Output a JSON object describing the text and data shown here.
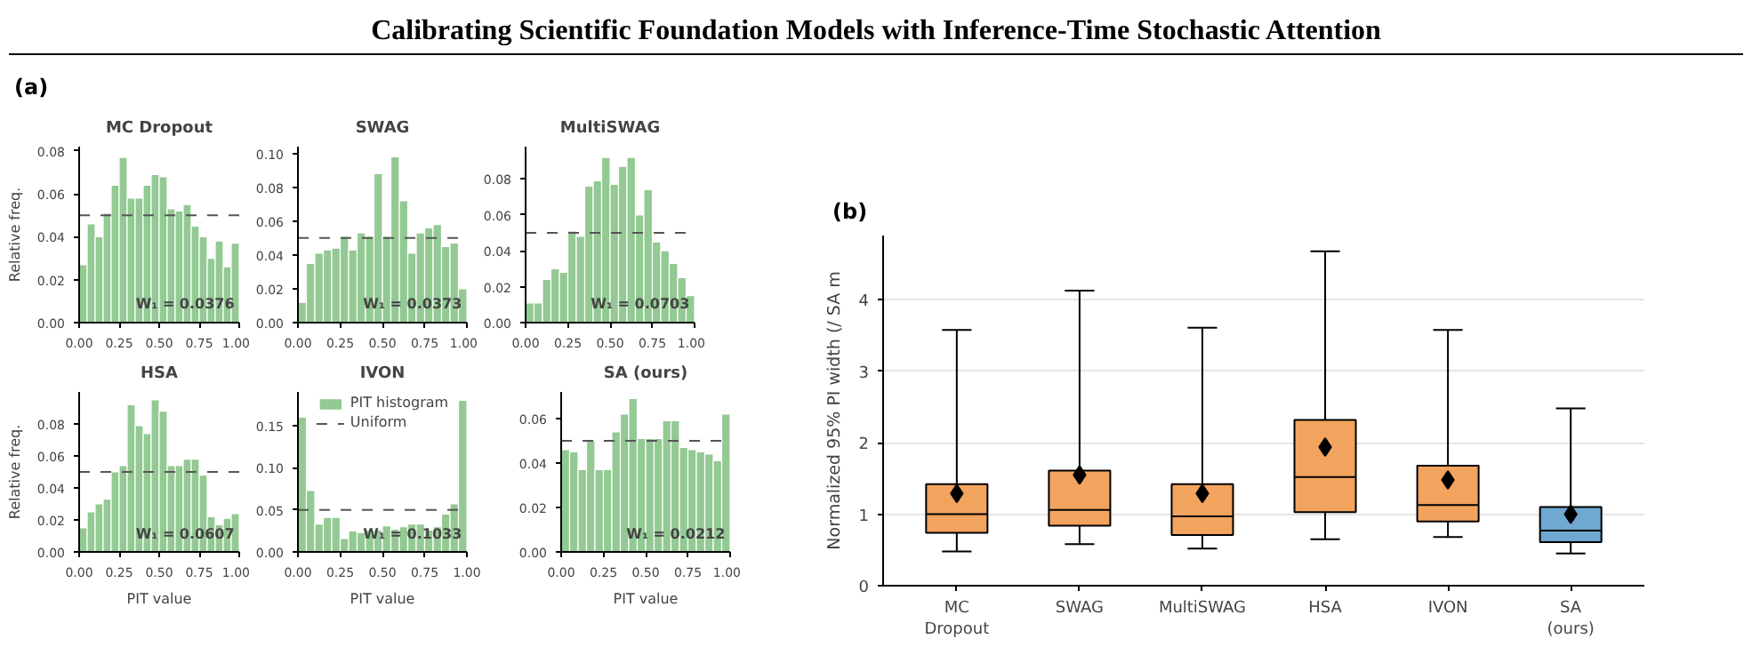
{
  "chart_data": [
    {
      "type": "other",
      "title": "Calibrating Scientific Foundation Models with Inference-Time Stochastic Attention"
    },
    {
      "type": "histogram",
      "title": "MC Dropout",
      "ylabel": "Relative freq.",
      "annotations": [
        "(a)",
        "W₁ = 0.0376"
      ],
      "color": "#93c993",
      "bins": [
        0,
        0.05,
        0.1,
        0.15,
        0.2,
        0.25,
        0.3,
        0.35,
        0.4,
        0.45,
        0.5,
        0.55,
        0.6,
        0.65,
        0.7,
        0.75,
        0.8,
        0.85,
        0.9,
        0.95,
        1.0
      ],
      "values": [
        0.027,
        0.046,
        0.04,
        0.051,
        0.064,
        0.077,
        0.058,
        0.058,
        0.064,
        0.069,
        0.068,
        0.053,
        0.052,
        0.055,
        0.045,
        0.04,
        0.03,
        0.038,
        0.026,
        0.037
      ],
      "xlim": [
        0,
        1
      ],
      "xticks": [
        {
          "value": 0,
          "label": "0.00"
        },
        {
          "value": 0.25,
          "label": "0.25"
        },
        {
          "value": 0.5,
          "label": "0.50"
        },
        {
          "value": 0.75,
          "label": "0.75"
        },
        {
          "value": 1,
          "label": "1.00"
        }
      ],
      "ylim": [
        0,
        0.082
      ],
      "yticks": [
        {
          "value": 0,
          "label": "0.00"
        },
        {
          "value": 0.02,
          "label": "0.02"
        },
        {
          "value": 0.04,
          "label": "0.04"
        },
        {
          "value": 0.06,
          "label": "0.06"
        },
        {
          "value": 0.08,
          "label": "0.08"
        }
      ],
      "ref_lines": [
        {
          "axis": "y",
          "value": 0.05,
          "color": "#555555",
          "line_style": "dashed"
        }
      ]
    },
    {
      "type": "histogram",
      "title": "SWAG",
      "annotations": [
        "W₁ = 0.0373"
      ],
      "color": "#93c993",
      "bins": [
        0,
        0.05,
        0.1,
        0.15,
        0.2,
        0.25,
        0.3,
        0.35,
        0.4,
        0.45,
        0.5,
        0.55,
        0.6,
        0.65,
        0.7,
        0.75,
        0.8,
        0.85,
        0.9,
        0.95,
        1.0
      ],
      "values": [
        0.012,
        0.035,
        0.041,
        0.043,
        0.044,
        0.051,
        0.043,
        0.053,
        0.051,
        0.088,
        0.051,
        0.098,
        0.072,
        0.041,
        0.053,
        0.056,
        0.058,
        0.045,
        0.047,
        0.02
      ],
      "xlim": [
        0,
        1
      ],
      "xticks": [
        {
          "value": 0,
          "label": "0.00"
        },
        {
          "value": 0.25,
          "label": "0.25"
        },
        {
          "value": 0.5,
          "label": "0.50"
        },
        {
          "value": 0.75,
          "label": "0.75"
        },
        {
          "value": 1,
          "label": "1.00"
        }
      ],
      "ylim": [
        0,
        0.104
      ],
      "yticks": [
        {
          "value": 0,
          "label": "0.00"
        },
        {
          "value": 0.02,
          "label": "0.02"
        },
        {
          "value": 0.04,
          "label": "0.04"
        },
        {
          "value": 0.06,
          "label": "0.06"
        },
        {
          "value": 0.08,
          "label": "0.08"
        },
        {
          "value": 0.1,
          "label": "0.10"
        }
      ],
      "ref_lines": [
        {
          "axis": "y",
          "value": 0.05,
          "color": "#555555",
          "line_style": "dashed"
        }
      ]
    },
    {
      "type": "histogram",
      "title": "MultiSWAG",
      "annotations": [
        "W₁ = 0.0703"
      ],
      "color": "#93c993",
      "bins": [
        0,
        0.05,
        0.1,
        0.15,
        0.2,
        0.25,
        0.3,
        0.35,
        0.4,
        0.45,
        0.5,
        0.55,
        0.6,
        0.65,
        0.7,
        0.75,
        0.8,
        0.85,
        0.9,
        0.95,
        1.0
      ],
      "values": [
        0.011,
        0.011,
        0.024,
        0.03,
        0.028,
        0.051,
        0.048,
        0.076,
        0.079,
        0.092,
        0.077,
        0.087,
        0.092,
        0.06,
        0.074,
        0.045,
        0.04,
        0.033,
        0.025,
        0.015
      ],
      "xlim": [
        0,
        1
      ],
      "xticks": [
        {
          "value": 0,
          "label": "0.00"
        },
        {
          "value": 0.25,
          "label": "0.25"
        },
        {
          "value": 0.5,
          "label": "0.50"
        },
        {
          "value": 0.75,
          "label": "0.75"
        },
        {
          "value": 1,
          "label": "1.00"
        }
      ],
      "ylim": [
        0,
        0.098
      ],
      "yticks": [
        {
          "value": 0,
          "label": "0.00"
        },
        {
          "value": 0.02,
          "label": "0.02"
        },
        {
          "value": 0.04,
          "label": "0.04"
        },
        {
          "value": 0.06,
          "label": "0.06"
        },
        {
          "value": 0.08,
          "label": "0.08"
        }
      ],
      "ref_lines": [
        {
          "axis": "y",
          "value": 0.05,
          "color": "#555555",
          "line_style": "dashed"
        }
      ]
    },
    {
      "type": "histogram",
      "title": "HSA",
      "xlabel": "PIT value",
      "ylabel": "Relative freq.",
      "annotations": [
        "W₁ = 0.0607"
      ],
      "color": "#93c993",
      "bins": [
        0,
        0.05,
        0.1,
        0.15,
        0.2,
        0.25,
        0.3,
        0.35,
        0.4,
        0.45,
        0.5,
        0.55,
        0.6,
        0.65,
        0.7,
        0.75,
        0.8,
        0.85,
        0.9,
        0.95,
        1.0
      ],
      "values": [
        0.015,
        0.025,
        0.03,
        0.033,
        0.05,
        0.054,
        0.092,
        0.079,
        0.074,
        0.095,
        0.088,
        0.054,
        0.054,
        0.058,
        0.058,
        0.048,
        0.022,
        0.017,
        0.021,
        0.024
      ],
      "xlim": [
        0,
        1
      ],
      "xticks": [
        {
          "value": 0,
          "label": "0.00"
        },
        {
          "value": 0.25,
          "label": "0.25"
        },
        {
          "value": 0.5,
          "label": "0.50"
        },
        {
          "value": 0.75,
          "label": "0.75"
        },
        {
          "value": 1,
          "label": "1.00"
        }
      ],
      "ylim": [
        0,
        0.1
      ],
      "yticks": [
        {
          "value": 0,
          "label": "0.00"
        },
        {
          "value": 0.02,
          "label": "0.02"
        },
        {
          "value": 0.04,
          "label": "0.04"
        },
        {
          "value": 0.06,
          "label": "0.06"
        },
        {
          "value": 0.08,
          "label": "0.08"
        }
      ],
      "ref_lines": [
        {
          "axis": "y",
          "value": 0.05,
          "color": "#555555",
          "line_style": "dashed"
        }
      ]
    },
    {
      "type": "histogram",
      "title": "IVON",
      "xlabel": "PIT value",
      "annotations": [
        "W₁ = 0.1033"
      ],
      "legend": "top",
      "bins": [
        0,
        0.05,
        0.1,
        0.15,
        0.2,
        0.25,
        0.3,
        0.35,
        0.4,
        0.45,
        0.5,
        0.55,
        0.6,
        0.65,
        0.7,
        0.75,
        0.8,
        0.85,
        0.9,
        0.95,
        1.0
      ],
      "series": [
        {
          "name": "PIT histogram",
          "color": "#93c993",
          "values": [
            0.16,
            0.073,
            0.033,
            0.041,
            0.041,
            0.016,
            0.025,
            0.023,
            0.026,
            0.026,
            0.031,
            0.027,
            0.03,
            0.033,
            0.033,
            0.026,
            0.03,
            0.045,
            0.057,
            0.18
          ]
        }
      ],
      "xlim": [
        0,
        1
      ],
      "xticks": [
        {
          "value": 0,
          "label": "0.00"
        },
        {
          "value": 0.25,
          "label": "0.25"
        },
        {
          "value": 0.5,
          "label": "0.50"
        },
        {
          "value": 0.75,
          "label": "0.75"
        },
        {
          "value": 1,
          "label": "1.00"
        }
      ],
      "ylim": [
        0,
        0.19
      ],
      "yticks": [
        {
          "value": 0,
          "label": "0.00"
        },
        {
          "value": 0.05,
          "label": "0.05"
        },
        {
          "value": 0.1,
          "label": "0.10"
        },
        {
          "value": 0.15,
          "label": "0.15"
        }
      ],
      "ref_lines": [
        {
          "axis": "y",
          "value": 0.05,
          "color": "#555555",
          "line_style": "dashed",
          "label": "Uniform"
        }
      ]
    },
    {
      "type": "histogram",
      "title": "SA (ours)",
      "xlabel": "PIT value",
      "annotations": [
        "W₁ = 0.0212"
      ],
      "color": "#93c993",
      "bins": [
        0,
        0.05,
        0.1,
        0.15,
        0.2,
        0.25,
        0.3,
        0.35,
        0.4,
        0.45,
        0.5,
        0.55,
        0.6,
        0.65,
        0.7,
        0.75,
        0.8,
        0.85,
        0.9,
        0.95,
        1.0
      ],
      "values": [
        0.046,
        0.045,
        0.037,
        0.05,
        0.037,
        0.037,
        0.054,
        0.062,
        0.069,
        0.051,
        0.051,
        0.051,
        0.059,
        0.059,
        0.047,
        0.046,
        0.045,
        0.044,
        0.041,
        0.062
      ],
      "xlim": [
        0,
        1
      ],
      "xticks": [
        {
          "value": 0,
          "label": "0.00"
        },
        {
          "value": 0.25,
          "label": "0.25"
        },
        {
          "value": 0.5,
          "label": "0.50"
        },
        {
          "value": 0.75,
          "label": "0.75"
        },
        {
          "value": 1,
          "label": "1.00"
        }
      ],
      "ylim": [
        0,
        0.072
      ],
      "yticks": [
        {
          "value": 0,
          "label": "0.00"
        },
        {
          "value": 0.02,
          "label": "0.02"
        },
        {
          "value": 0.04,
          "label": "0.04"
        },
        {
          "value": 0.06,
          "label": "0.06"
        }
      ],
      "ref_lines": [
        {
          "axis": "y",
          "value": 0.05,
          "color": "#555555",
          "line_style": "dashed"
        }
      ]
    },
    {
      "type": "box",
      "annotations": [
        "(b)"
      ],
      "ylabel": "Normalized 95% PI width (/ SA m",
      "categories": [
        "MC\nDropout",
        "SWAG",
        "MultiSWAG",
        "HSA",
        "IVON",
        "SA\n(ours)"
      ],
      "colors": [
        "#f2a35e",
        "#f2a35e",
        "#f2a35e",
        "#f2a35e",
        "#f2a35e",
        "#6fa8d0"
      ],
      "boxes": [
        {
          "low": 0.48,
          "q1": 0.74,
          "median": 1.0,
          "q3": 1.42,
          "high": 3.58,
          "mean": 1.29
        },
        {
          "low": 0.58,
          "q1": 0.84,
          "median": 1.06,
          "q3": 1.61,
          "high": 4.13,
          "mean": 1.55
        },
        {
          "low": 0.52,
          "q1": 0.71,
          "median": 0.97,
          "q3": 1.42,
          "high": 3.61,
          "mean": 1.29
        },
        {
          "low": 0.65,
          "q1": 1.03,
          "median": 1.52,
          "q3": 2.32,
          "high": 4.68,
          "mean": 1.94
        },
        {
          "low": 0.68,
          "q1": 0.9,
          "median": 1.13,
          "q3": 1.68,
          "high": 3.58,
          "mean": 1.48
        },
        {
          "low": 0.45,
          "q1": 0.61,
          "median": 0.77,
          "q3": 1.1,
          "high": 2.48,
          "mean": 1.0
        }
      ],
      "ylim": [
        0,
        4.9
      ],
      "yticks": [
        0,
        1,
        2,
        3,
        4
      ],
      "grid": "y"
    }
  ]
}
